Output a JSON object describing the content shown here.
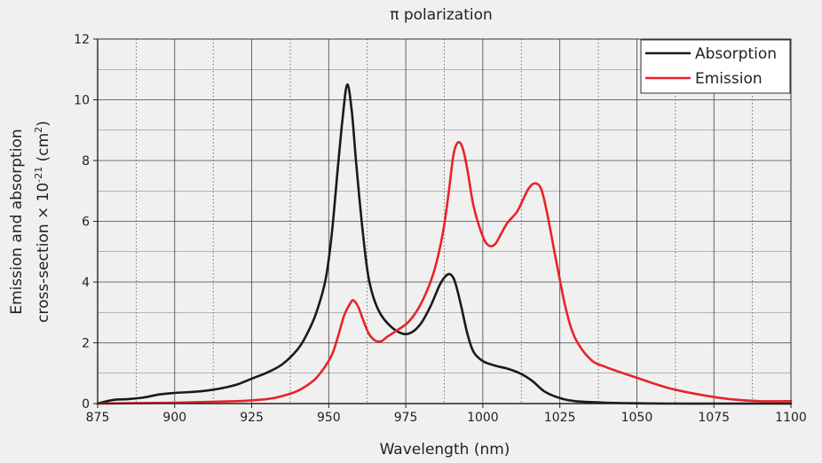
{
  "chart_data": {
    "type": "line",
    "title": "π polarization",
    "xlabel": "Wavelength (nm)",
    "ylabel_line1": "Emission and absorption",
    "ylabel_line2_pre": "cross-section × 10",
    "ylabel_line2_sup": "-21",
    "ylabel_line2_post": " (cm",
    "ylabel_line2_sup2": "2",
    "ylabel_line2_end": ")",
    "xlim": [
      875,
      1100
    ],
    "ylim": [
      0,
      12
    ],
    "xticks": [
      875,
      900,
      925,
      950,
      975,
      1000,
      1025,
      1050,
      1075,
      1100
    ],
    "yticks": [
      0,
      2,
      4,
      6,
      8,
      10,
      12
    ],
    "grid": true,
    "legend_position": "top-right",
    "series": [
      {
        "name": "Absorption",
        "color": "#1a1a1a",
        "x": [
          875,
          880,
          885,
          890,
          895,
          900,
          905,
          910,
          915,
          920,
          925,
          930,
          935,
          940,
          943,
          946,
          949,
          951,
          953,
          954.5,
          956,
          957.5,
          959,
          961,
          963,
          966,
          970,
          974,
          977,
          980,
          983,
          986,
          988,
          989.5,
          991,
          993,
          995,
          997,
          1000,
          1004,
          1008,
          1012,
          1016,
          1020,
          1025,
          1030,
          1040,
          1050,
          1060,
          1075,
          1090,
          1100
        ],
        "y": [
          0.0,
          0.12,
          0.15,
          0.2,
          0.3,
          0.35,
          0.38,
          0.42,
          0.5,
          0.62,
          0.82,
          1.02,
          1.3,
          1.8,
          2.3,
          3.0,
          4.1,
          5.6,
          7.8,
          9.4,
          10.5,
          9.6,
          7.8,
          5.7,
          4.1,
          3.1,
          2.55,
          2.3,
          2.35,
          2.65,
          3.2,
          3.9,
          4.2,
          4.25,
          4.0,
          3.2,
          2.3,
          1.7,
          1.4,
          1.25,
          1.15,
          1.0,
          0.75,
          0.4,
          0.18,
          0.08,
          0.03,
          0.01,
          0.0,
          0.0,
          0.0,
          0.0
        ]
      },
      {
        "name": "Emission",
        "color": "#e8232a",
        "x": [
          875,
          900,
          920,
          930,
          935,
          940,
          945,
          948,
          951,
          953,
          955,
          957,
          958,
          959.5,
          961,
          963,
          965,
          967,
          969,
          972,
          976,
          980,
          984,
          987,
          989,
          990.5,
          992,
          993.5,
          995,
          997,
          1000,
          1002,
          1004,
          1006,
          1008,
          1011,
          1013,
          1015,
          1017,
          1019,
          1021,
          1024,
          1027,
          1030,
          1035,
          1040,
          1050,
          1060,
          1070,
          1080,
          1090,
          1100
        ],
        "y": [
          0.0,
          0.03,
          0.08,
          0.15,
          0.25,
          0.42,
          0.75,
          1.1,
          1.6,
          2.2,
          2.9,
          3.3,
          3.4,
          3.2,
          2.8,
          2.3,
          2.08,
          2.05,
          2.2,
          2.4,
          2.7,
          3.3,
          4.3,
          5.6,
          7.0,
          8.2,
          8.6,
          8.4,
          7.7,
          6.5,
          5.5,
          5.2,
          5.25,
          5.6,
          5.95,
          6.3,
          6.7,
          7.1,
          7.25,
          7.05,
          6.2,
          4.6,
          3.1,
          2.15,
          1.45,
          1.2,
          0.85,
          0.52,
          0.3,
          0.15,
          0.08,
          0.08
        ]
      }
    ]
  }
}
